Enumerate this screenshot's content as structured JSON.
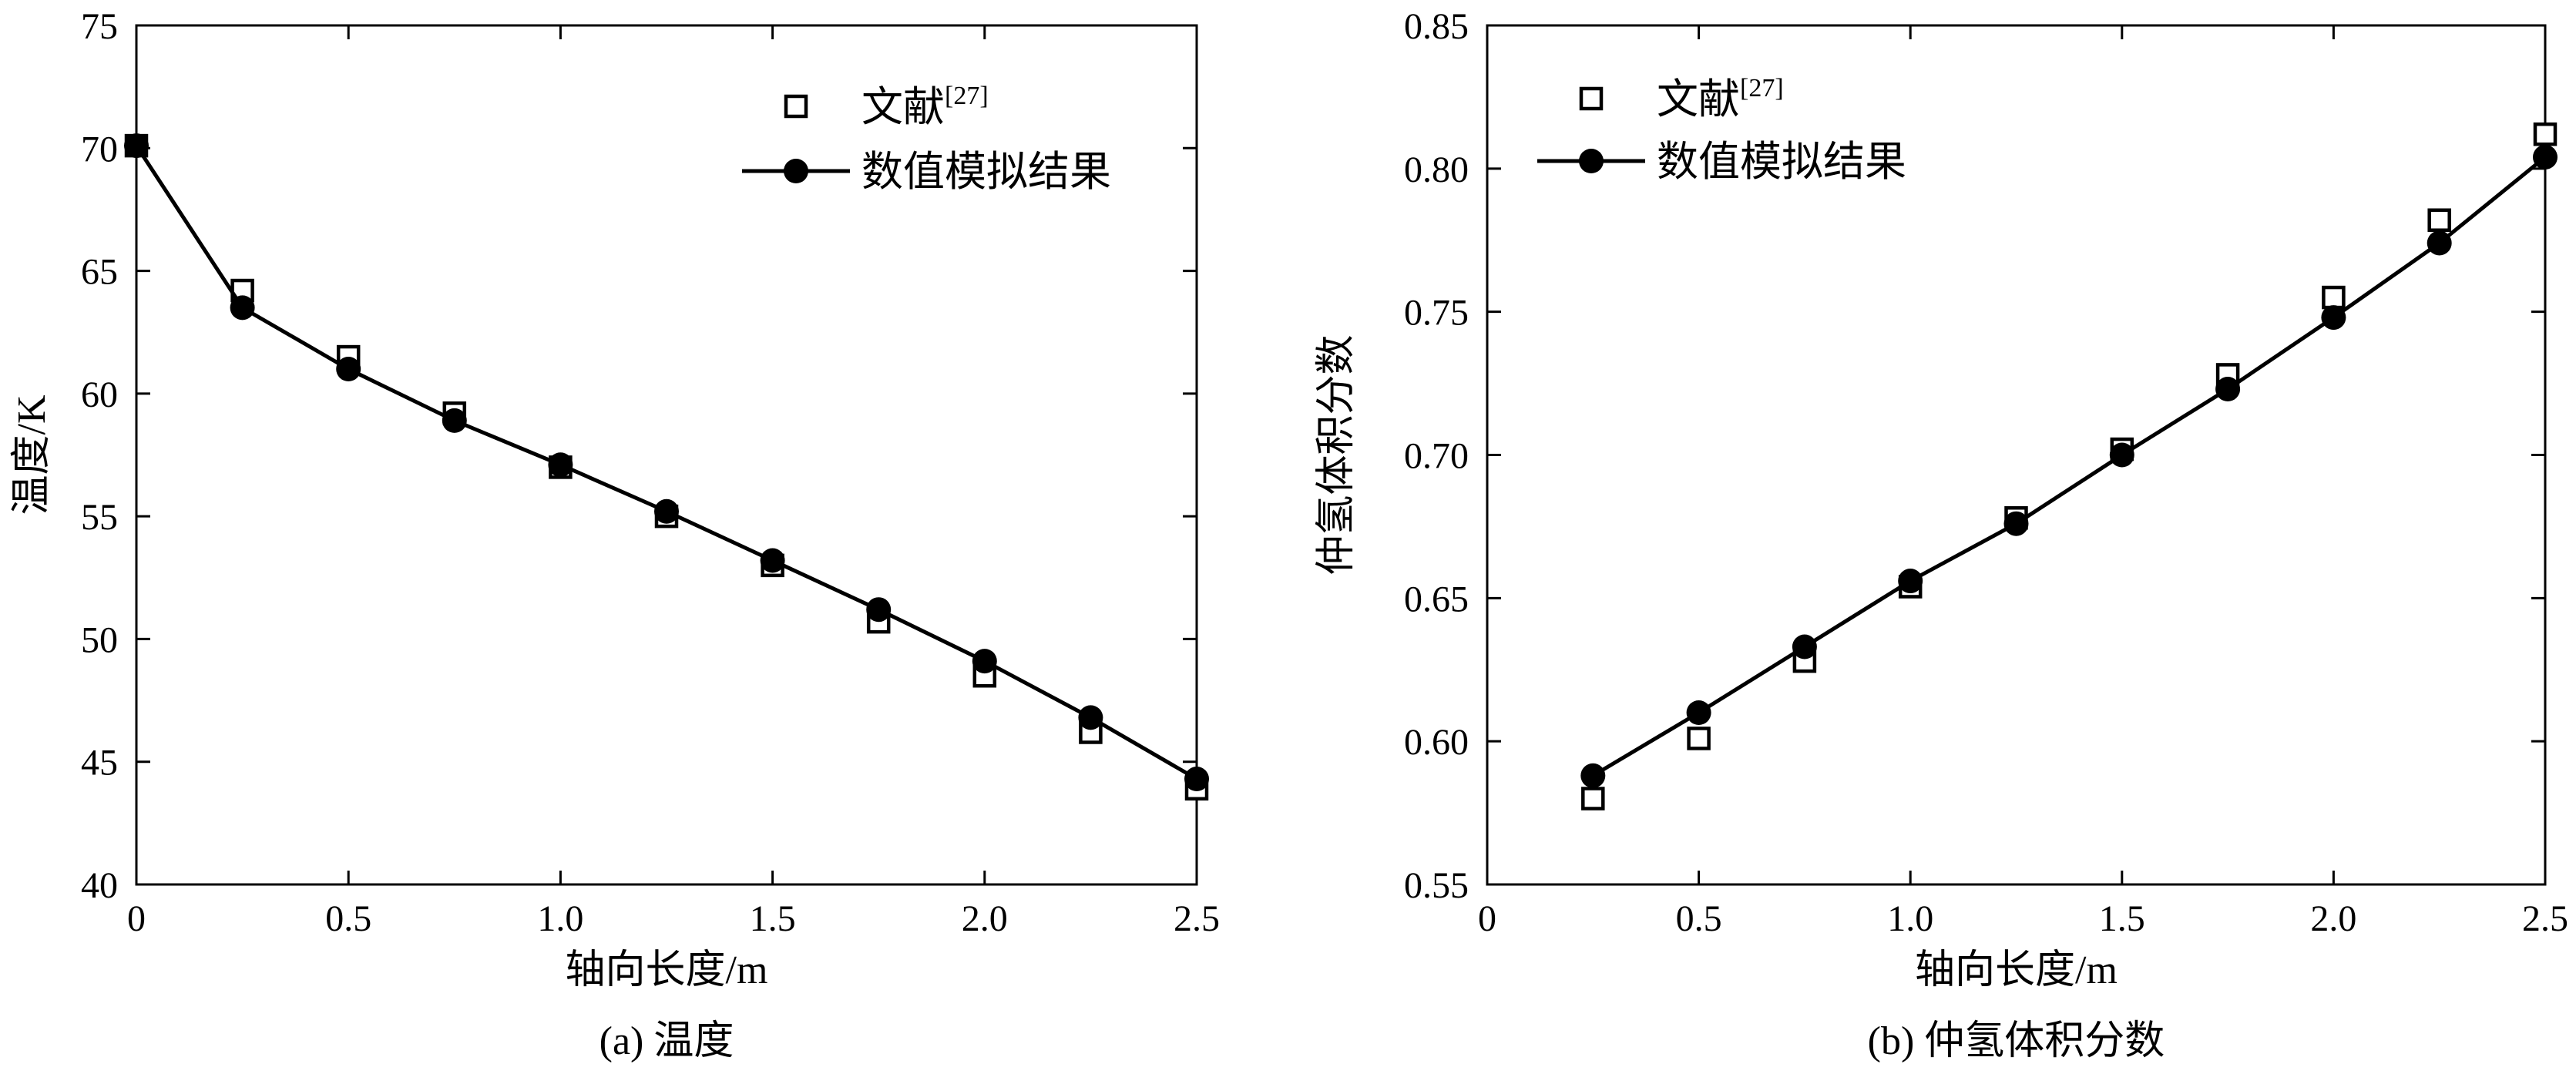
{
  "chart_data": [
    {
      "type": "line",
      "caption": "(a) 温度",
      "xlabel": "轴向长度/m",
      "ylabel": "温度/K",
      "xlim": [
        0,
        2.5
      ],
      "ylim": [
        40,
        75
      ],
      "xticks": [
        0,
        0.5,
        1.0,
        1.5,
        2.0,
        2.5
      ],
      "xtick_labels": [
        "0",
        "0.5",
        "1.0",
        "1.5",
        "2.0",
        "2.5"
      ],
      "yticks": [
        40,
        45,
        50,
        55,
        60,
        65,
        70,
        75
      ],
      "ytick_labels": [
        "40",
        "45",
        "50",
        "55",
        "60",
        "65",
        "70",
        "75"
      ],
      "grid": false,
      "legend_position": "top-right",
      "series": [
        {
          "name": "文献",
          "name_superscript": "[27]",
          "marker": "open-square",
          "line": false,
          "x": [
            0,
            0.25,
            0.5,
            0.75,
            1.0,
            1.25,
            1.5,
            1.75,
            2.0,
            2.25,
            2.5
          ],
          "y": [
            70.1,
            64.2,
            61.5,
            59.2,
            57.0,
            55.0,
            53.0,
            50.7,
            48.5,
            46.2,
            43.9
          ]
        },
        {
          "name": "数值模拟结果",
          "marker": "filled-circle",
          "line": true,
          "x": [
            0,
            0.25,
            0.5,
            0.75,
            1.0,
            1.25,
            1.5,
            1.75,
            2.0,
            2.25,
            2.5
          ],
          "y": [
            70.1,
            63.5,
            61.0,
            58.9,
            57.1,
            55.2,
            53.2,
            51.2,
            49.1,
            46.8,
            44.3
          ]
        }
      ]
    },
    {
      "type": "line",
      "caption": "(b) 仲氢体积分数",
      "xlabel": "轴向长度/m",
      "ylabel": "仲氢体积分数",
      "xlim": [
        0,
        2.5
      ],
      "ylim": [
        0.55,
        0.85
      ],
      "xticks": [
        0,
        0.5,
        1.0,
        1.5,
        2.0,
        2.5
      ],
      "xtick_labels": [
        "0",
        "0.5",
        "1.0",
        "1.5",
        "2.0",
        "2.5"
      ],
      "yticks": [
        0.55,
        0.6,
        0.65,
        0.7,
        0.75,
        0.8,
        0.85
      ],
      "ytick_labels": [
        "0.55",
        "0.60",
        "0.65",
        "0.70",
        "0.75",
        "0.80",
        "0.85"
      ],
      "grid": false,
      "legend_position": "top-left",
      "series": [
        {
          "name": "文献",
          "name_superscript": "[27]",
          "marker": "open-square",
          "line": false,
          "x": [
            0.25,
            0.5,
            0.75,
            1.0,
            1.25,
            1.5,
            1.75,
            2.0,
            2.25,
            2.5
          ],
          "y": [
            0.58,
            0.601,
            0.628,
            0.654,
            0.678,
            0.702,
            0.728,
            0.755,
            0.782,
            0.812
          ]
        },
        {
          "name": "数值模拟结果",
          "marker": "filled-circle",
          "line": true,
          "x": [
            0.25,
            0.5,
            0.75,
            1.0,
            1.25,
            1.5,
            1.75,
            2.0,
            2.25,
            2.5
          ],
          "y": [
            0.588,
            0.61,
            0.633,
            0.656,
            0.676,
            0.7,
            0.723,
            0.748,
            0.774,
            0.804
          ]
        }
      ]
    }
  ],
  "colors": {
    "ink": "#000000",
    "background": "#ffffff"
  }
}
